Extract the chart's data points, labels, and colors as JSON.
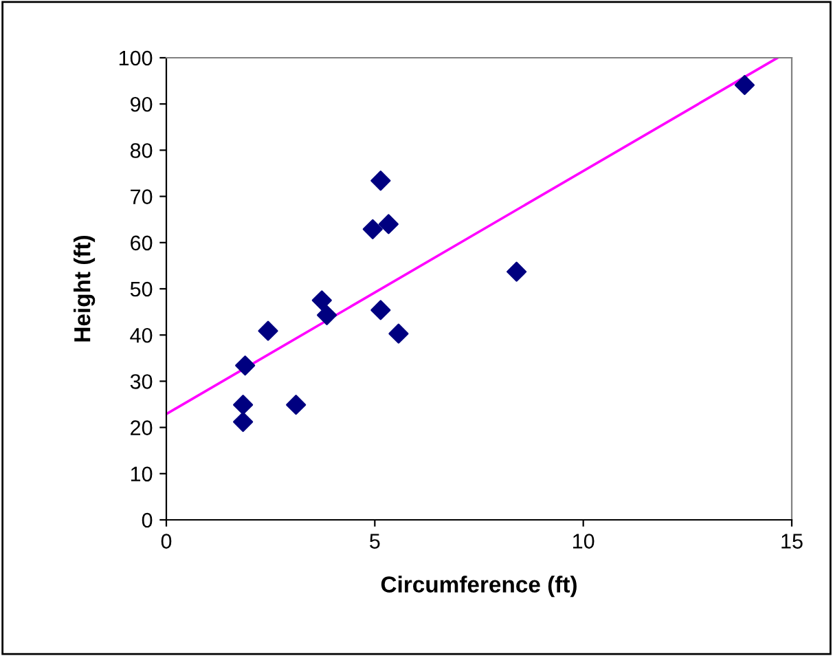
{
  "chart_data": {
    "type": "scatter",
    "xlabel": "Circumference (ft)",
    "ylabel": "Height (ft)",
    "xlim": [
      0,
      15
    ],
    "ylim": [
      0,
      100
    ],
    "xticks": [
      0,
      5,
      10,
      15
    ],
    "yticks": [
      0,
      10,
      20,
      30,
      40,
      50,
      60,
      70,
      80,
      90,
      100
    ],
    "grid": false,
    "legend": false,
    "series": [
      {
        "marker": "diamond",
        "color": "#000080",
        "x": [
          1.84,
          1.84,
          1.89,
          2.44,
          3.11,
          3.73,
          3.85,
          4.95,
          5.14,
          5.33,
          5.14,
          5.57,
          8.4,
          13.87
        ],
        "values": [
          21.2,
          24.9,
          33.4,
          40.9,
          24.9,
          47.5,
          44.3,
          62.9,
          73.4,
          64.0,
          45.4,
          40.3,
          53.7,
          94.1
        ]
      },
      {
        "type": "line",
        "marker": "none",
        "color": "#ff00ff",
        "x": [
          0,
          14.66
        ],
        "values": [
          22.9,
          100
        ]
      }
    ]
  }
}
